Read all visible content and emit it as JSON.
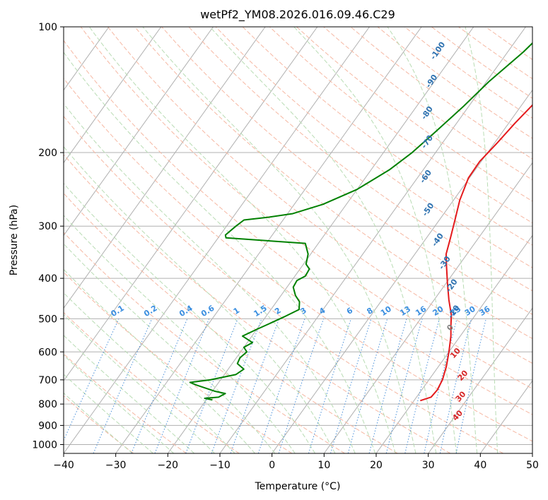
{
  "chart_data": {
    "type": "line",
    "subtype": "skew-t log-p diagram",
    "title": "wetPf2_YM08.2026.016.09.46.C29",
    "xlabel": "Temperature (°C)",
    "ylabel": "Pressure (hPa)",
    "xlim": [
      -40,
      50
    ],
    "ylim": [
      1050,
      100
    ],
    "y_scale": "log",
    "grid": true,
    "x_ticks": [
      -40,
      -30,
      -20,
      -10,
      0,
      10,
      20,
      30,
      40,
      50
    ],
    "y_ticks": [
      100,
      200,
      300,
      400,
      500,
      600,
      700,
      800,
      900,
      1000
    ],
    "series": [
      {
        "name": "",
        "role": "temperature",
        "color": "#e41a1c",
        "points": [
          [
            21.2,
            785
          ],
          [
            22.8,
            770
          ],
          [
            23.0,
            740
          ],
          [
            22.6,
            700
          ],
          [
            21.5,
            650
          ],
          [
            20.0,
            600
          ],
          [
            18.2,
            550
          ],
          [
            16.8,
            520
          ],
          [
            15.4,
            490
          ],
          [
            12.8,
            450
          ],
          [
            10.2,
            410
          ],
          [
            7.8,
            375
          ],
          [
            6.0,
            350
          ],
          [
            4.6,
            320
          ],
          [
            3.0,
            290
          ],
          [
            1.2,
            260
          ],
          [
            -0.2,
            230
          ],
          [
            -0.3,
            210
          ],
          [
            0.5,
            190
          ],
          [
            1.2,
            170
          ],
          [
            2.3,
            150
          ],
          [
            4.0,
            140
          ],
          [
            6.2,
            125
          ],
          [
            8.2,
            112
          ],
          [
            10.0,
            100
          ]
        ]
      },
      {
        "name": "",
        "role": "dewpoint",
        "color": "#008000",
        "points": [
          [
            -18.8,
            782
          ],
          [
            -20.5,
            775
          ],
          [
            -18.0,
            770
          ],
          [
            -17.2,
            755
          ],
          [
            -19.6,
            745
          ],
          [
            -24.0,
            720
          ],
          [
            -25.5,
            710
          ],
          [
            -22.0,
            700
          ],
          [
            -17.8,
            680
          ],
          [
            -17.0,
            660
          ],
          [
            -19.0,
            640
          ],
          [
            -19.3,
            620
          ],
          [
            -18.8,
            600
          ],
          [
            -20.0,
            585
          ],
          [
            -19.0,
            570
          ],
          [
            -21.8,
            550
          ],
          [
            -20.0,
            530
          ],
          [
            -18.5,
            515
          ],
          [
            -16.5,
            495
          ],
          [
            -14.6,
            475
          ],
          [
            -15.6,
            455
          ],
          [
            -17.2,
            440
          ],
          [
            -18.8,
            420
          ],
          [
            -19.0,
            405
          ],
          [
            -18.0,
            395
          ],
          [
            -18.2,
            380
          ],
          [
            -19.5,
            370
          ],
          [
            -20.5,
            350
          ],
          [
            -22.5,
            330
          ],
          [
            -38.5,
            320
          ],
          [
            -39.0,
            315
          ],
          [
            -38.2,
            300
          ],
          [
            -37.5,
            290
          ],
          [
            -33.5,
            286
          ],
          [
            -29.0,
            280
          ],
          [
            -24.5,
            266
          ],
          [
            -20.0,
            245
          ],
          [
            -16.5,
            220
          ],
          [
            -14.5,
            200
          ],
          [
            -13.0,
            180
          ],
          [
            -11.0,
            155
          ],
          [
            -9.5,
            135
          ],
          [
            -7.0,
            115
          ],
          [
            -5.5,
            100
          ]
        ]
      }
    ],
    "mixing_ratio_labels": [
      "0.1",
      "0.2",
      "0.4",
      "0.6",
      "1",
      "1.5",
      "2",
      "3",
      "4",
      "6",
      "8",
      "10",
      "13",
      "16",
      "20",
      "25",
      "30",
      "36"
    ],
    "mixing_ratio_values": [
      0.1,
      0.2,
      0.4,
      0.6,
      1,
      1.5,
      2,
      3,
      4,
      6,
      8,
      10,
      13,
      16,
      20,
      25,
      30,
      36
    ],
    "dry_adiabat_labels": [
      "-100",
      "-90",
      "-80",
      "-70",
      "-60",
      "-50",
      "-40",
      "-30",
      "-20",
      "-10"
    ],
    "moist_adiabat_labels": [
      "0",
      "10",
      "20",
      "30",
      "40"
    ],
    "colors": {
      "isotherm": "#b0b0b0",
      "dry_adiabat": "#f6b8a3",
      "moist_adiabat": "#b9dcb4",
      "mixing_ratio": "#4a90d9",
      "dry_label": "#2f72b0",
      "mixing_label": "#3b8fe0",
      "moist_label": "#d62728",
      "moist_label_zero": "#808080"
    }
  }
}
